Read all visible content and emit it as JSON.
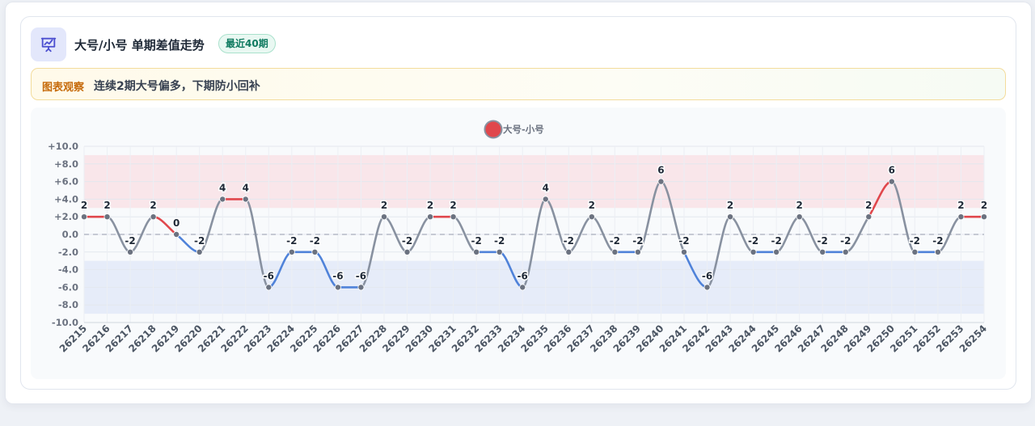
{
  "header": {
    "icon": "presentation-chart-icon",
    "title": "大号/小号 单期差值走势",
    "badge": "最近40期"
  },
  "note": {
    "label": "图表观察",
    "text": "连续2期大号偏多，下期防小回补"
  },
  "colors": {
    "positive": "#e0474c",
    "negative": "#4f82d9",
    "neutral": "#8891a0",
    "marker": "#6b7280",
    "positive_band": "#f9e6ea",
    "negative_band": "#e6ecf9"
  },
  "chart_data": {
    "type": "line",
    "title": "",
    "xlabel": "",
    "ylabel": "",
    "legend": {
      "position": "top-center"
    },
    "grid": true,
    "ylim": [
      -10,
      10
    ],
    "y_ticks": [
      10,
      8,
      6,
      4,
      2,
      0,
      -2,
      -4,
      -6,
      -8,
      -10
    ],
    "y_tick_labels": [
      "+10.0",
      "+8.0",
      "+6.0",
      "+4.0",
      "+2.0",
      "0.0",
      "-2.0",
      "-4.0",
      "-6.0",
      "-8.0",
      "-10.0"
    ],
    "bands": [
      {
        "from": 3,
        "to": 9,
        "color": "#f9e6ea"
      },
      {
        "from": -9,
        "to": -3,
        "color": "#e6ecf9"
      }
    ],
    "reference_line": 0,
    "x": [
      "26215",
      "26216",
      "26217",
      "26218",
      "26219",
      "26220",
      "26221",
      "26222",
      "26223",
      "26224",
      "26225",
      "26226",
      "26227",
      "26228",
      "26229",
      "26230",
      "26231",
      "26232",
      "26233",
      "26234",
      "26235",
      "26236",
      "26237",
      "26238",
      "26239",
      "26240",
      "26241",
      "26242",
      "26243",
      "26244",
      "26245",
      "26246",
      "26247",
      "26248",
      "26249",
      "26250",
      "26251",
      "26252",
      "26253",
      "26254"
    ],
    "series": [
      {
        "name": "大号-小号",
        "values": [
          2,
          2,
          -2,
          2,
          0,
          -2,
          4,
          4,
          -6,
          -2,
          -2,
          -6,
          -6,
          2,
          -2,
          2,
          2,
          -2,
          -2,
          -6,
          4,
          -2,
          2,
          -2,
          -2,
          6,
          -2,
          -6,
          2,
          -2,
          -2,
          2,
          -2,
          -2,
          2,
          6,
          -2,
          -2,
          2,
          2
        ]
      }
    ]
  }
}
